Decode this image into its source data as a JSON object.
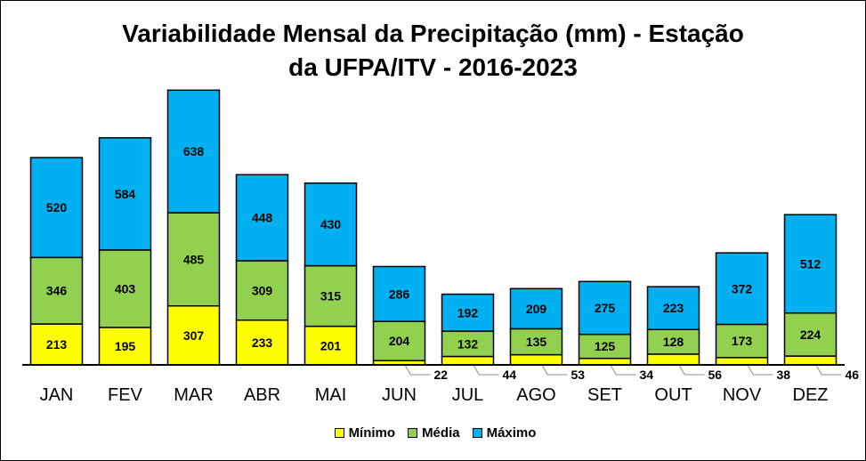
{
  "chart_data": {
    "type": "bar",
    "stacked": true,
    "title": "Variabilidade Mensal da Precipitação (mm) - Estação da UFPA/ITV - 2016-2023",
    "title_lines": [
      "Variabilidade Mensal da Precipitação (mm) - Estação",
      "da UFPA/ITV - 2016-2023"
    ],
    "categories": [
      "JAN",
      "FEV",
      "MAR",
      "ABR",
      "MAI",
      "JUN",
      "JUL",
      "AGO",
      "SET",
      "OUT",
      "NOV",
      "DEZ"
    ],
    "series": [
      {
        "name": "Mínimo",
        "color": "#ffff00",
        "values": [
          213,
          195,
          307,
          233,
          201,
          22,
          44,
          53,
          34,
          56,
          38,
          46
        ]
      },
      {
        "name": "Média",
        "color": "#92d050",
        "values": [
          346,
          403,
          485,
          309,
          315,
          204,
          132,
          135,
          125,
          128,
          173,
          224
        ]
      },
      {
        "name": "Máximo",
        "color": "#00b0f0",
        "values": [
          520,
          584,
          638,
          448,
          430,
          286,
          192,
          209,
          275,
          223,
          372,
          512
        ]
      }
    ],
    "xlabel": "",
    "ylabel": "",
    "ylim": [
      0,
      1450
    ],
    "grid": false,
    "legend_position": "bottom"
  }
}
